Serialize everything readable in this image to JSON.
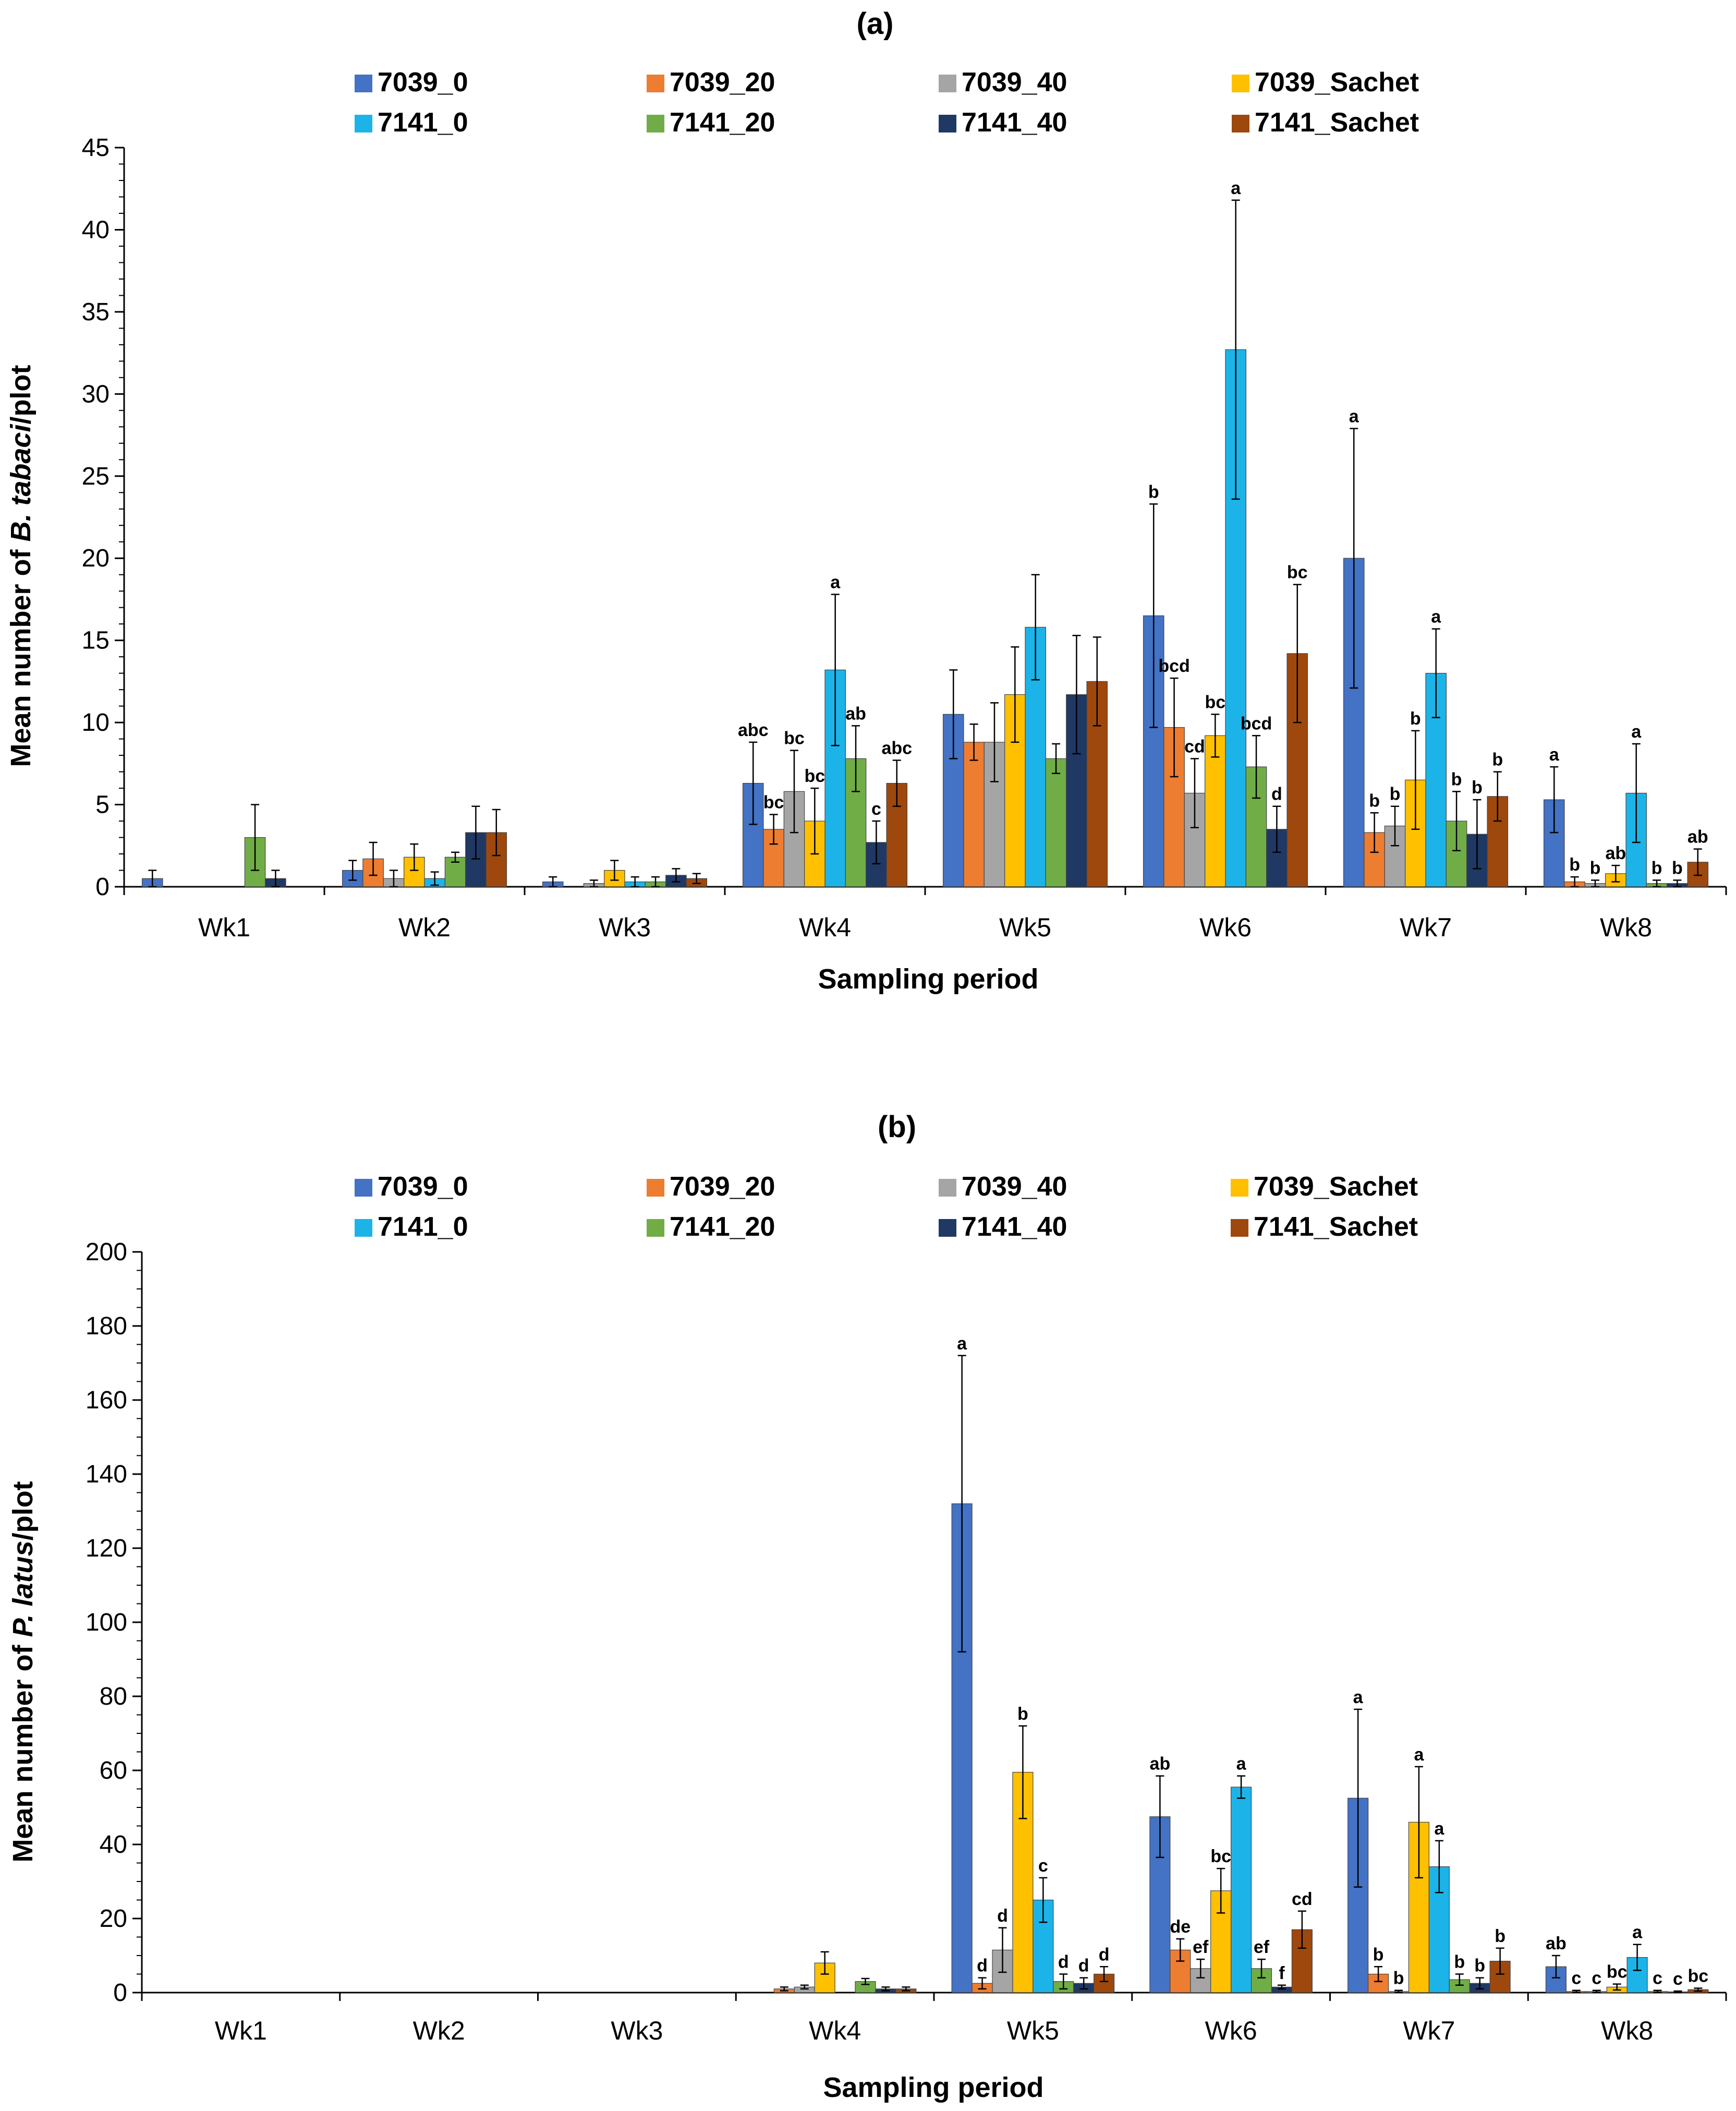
{
  "colors": {
    "7039_0": "#4472C4",
    "7039_20": "#ED7D31",
    "7039_40": "#A5A5A5",
    "7039_Sachet": "#FFC000",
    "7141_0": "#1CB4E8",
    "7141_20": "#70AD47",
    "7141_40": "#203864",
    "7141_Sachet": "#9E480E"
  },
  "chart_data": [
    {
      "type": "bar",
      "title": "(a)",
      "xlabel": "Sampling period",
      "ylabel_prefix": "Mean number of ",
      "ylabel_italic": "B. tabaci",
      "ylabel_suffix": "/plot",
      "ylim": [
        0,
        45
      ],
      "yticks": [
        0,
        5,
        10,
        15,
        20,
        25,
        30,
        35,
        40,
        45
      ],
      "categories": [
        "Wk1",
        "Wk2",
        "Wk3",
        "Wk4",
        "Wk5",
        "Wk6",
        "Wk7",
        "Wk8"
      ],
      "legend": [
        "7039_0",
        "7039_20",
        "7039_40",
        "7039_Sachet",
        "7141_0",
        "7141_20",
        "7141_40",
        "7141_Sachet"
      ],
      "series": [
        {
          "name": "7039_0",
          "values": [
            0.5,
            1.0,
            0.3,
            6.3,
            10.5,
            16.5,
            20.0,
            5.3
          ],
          "errors": [
            0.5,
            0.6,
            0.3,
            2.5,
            2.7,
            6.8,
            7.9,
            2.0
          ],
          "labels": [
            "",
            "",
            "",
            "abc",
            "",
            "b",
            "a",
            "a"
          ]
        },
        {
          "name": "7039_20",
          "values": [
            0.0,
            1.7,
            0.0,
            3.5,
            8.8,
            9.7,
            3.3,
            0.3
          ],
          "errors": [
            0.0,
            1.0,
            0.0,
            0.9,
            1.1,
            3.0,
            1.2,
            0.3
          ],
          "labels": [
            "",
            "",
            "",
            "bc",
            "",
            "bcd",
            "b",
            "b"
          ]
        },
        {
          "name": "7039_40",
          "values": [
            0.0,
            0.5,
            0.2,
            5.8,
            8.8,
            5.7,
            3.7,
            0.2
          ],
          "errors": [
            0.0,
            0.5,
            0.2,
            2.5,
            2.4,
            2.1,
            1.2,
            0.2
          ],
          "labels": [
            "",
            "",
            "",
            "bc",
            "",
            "cd",
            "b",
            "b"
          ]
        },
        {
          "name": "7039_Sachet",
          "values": [
            0.0,
            1.8,
            1.0,
            4.0,
            11.7,
            9.2,
            6.5,
            0.8
          ],
          "errors": [
            0.0,
            0.8,
            0.6,
            2.0,
            2.9,
            1.3,
            3.0,
            0.5
          ],
          "labels": [
            "",
            "",
            "",
            "bc",
            "",
            "bc",
            "b",
            "ab"
          ]
        },
        {
          "name": "7141_0",
          "values": [
            0.0,
            0.5,
            0.3,
            13.2,
            15.8,
            32.7,
            13.0,
            5.7
          ],
          "errors": [
            0.0,
            0.4,
            0.3,
            4.6,
            3.2,
            9.1,
            2.7,
            3.0
          ],
          "labels": [
            "",
            "",
            "",
            "a",
            "",
            "a",
            "a",
            "a"
          ]
        },
        {
          "name": "7141_20",
          "values": [
            3.0,
            1.8,
            0.3,
            7.8,
            7.8,
            7.3,
            4.0,
            0.2
          ],
          "errors": [
            2.0,
            0.3,
            0.3,
            2.0,
            0.9,
            1.9,
            1.8,
            0.2
          ],
          "labels": [
            "",
            "",
            "",
            "ab",
            "",
            "bcd",
            "b",
            "b"
          ]
        },
        {
          "name": "7141_40",
          "values": [
            0.5,
            3.3,
            0.7,
            2.7,
            11.7,
            3.5,
            3.2,
            0.2
          ],
          "errors": [
            0.5,
            1.6,
            0.4,
            1.3,
            3.6,
            1.4,
            2.1,
            0.2
          ],
          "labels": [
            "",
            "",
            "",
            "c",
            "",
            "d",
            "b",
            "b"
          ]
        },
        {
          "name": "7141_Sachet",
          "values": [
            0.0,
            3.3,
            0.5,
            6.3,
            12.5,
            14.2,
            5.5,
            1.5
          ],
          "errors": [
            0.0,
            1.4,
            0.3,
            1.4,
            2.7,
            4.2,
            1.5,
            0.8
          ],
          "labels": [
            "",
            "",
            "",
            "abc",
            "",
            "bc",
            "b",
            "ab"
          ]
        }
      ]
    },
    {
      "type": "bar",
      "title": "(b)",
      "xlabel": "Sampling period",
      "ylabel_prefix": "Mean number of ",
      "ylabel_italic": "P. latus",
      "ylabel_suffix": "/plot",
      "ylim": [
        0,
        200
      ],
      "yticks": [
        0,
        20,
        40,
        60,
        80,
        100,
        120,
        140,
        160,
        180,
        200
      ],
      "categories": [
        "Wk1",
        "Wk2",
        "Wk3",
        "Wk4",
        "Wk5",
        "Wk6",
        "Wk7",
        "Wk8"
      ],
      "legend": [
        "7039_0",
        "7039_20",
        "7039_40",
        "7039_Sachet",
        "7141_0",
        "7141_20",
        "7141_40",
        "7141_Sachet"
      ],
      "series": [
        {
          "name": "7039_0",
          "values": [
            0,
            0,
            0,
            0,
            132,
            47.5,
            52.5,
            7.0
          ],
          "errors": [
            0,
            0,
            0,
            0,
            40,
            11,
            24,
            3
          ],
          "labels": [
            "",
            "",
            "",
            "",
            "a",
            "ab",
            "a",
            "ab"
          ]
        },
        {
          "name": "7039_20",
          "values": [
            0,
            0,
            0,
            1.0,
            2.5,
            11.5,
            5.0,
            0.3
          ],
          "errors": [
            0,
            0,
            0,
            0.5,
            1.5,
            3,
            2,
            0.3
          ],
          "labels": [
            "",
            "",
            "",
            "",
            "d",
            "de",
            "b",
            "c"
          ]
        },
        {
          "name": "7039_40",
          "values": [
            0,
            0,
            0,
            1.5,
            11.5,
            6.5,
            0.3,
            0.3
          ],
          "errors": [
            0,
            0,
            0,
            0.5,
            6,
            2.5,
            0.3,
            0.3
          ],
          "labels": [
            "",
            "",
            "",
            "",
            "d",
            "ef",
            "b",
            "c"
          ]
        },
        {
          "name": "7039_Sachet",
          "values": [
            0,
            0,
            0,
            8.0,
            59.5,
            27.5,
            46.0,
            1.5
          ],
          "errors": [
            0,
            0,
            0,
            3,
            12.5,
            6,
            15,
            0.8
          ],
          "labels": [
            "",
            "",
            "",
            "",
            "b",
            "bc",
            "a",
            "bc"
          ]
        },
        {
          "name": "7141_0",
          "values": [
            0,
            0,
            0,
            0,
            25.0,
            55.5,
            34.0,
            9.5
          ],
          "errors": [
            0,
            0,
            0,
            0,
            6,
            3,
            7,
            3.5
          ],
          "labels": [
            "",
            "",
            "",
            "",
            "c",
            "a",
            "a",
            "a"
          ]
        },
        {
          "name": "7141_20",
          "values": [
            0,
            0,
            0,
            3.0,
            3.0,
            6.5,
            3.5,
            0.3
          ],
          "errors": [
            0,
            0,
            0,
            0.8,
            2,
            2.5,
            1.5,
            0.3
          ],
          "labels": [
            "",
            "",
            "",
            "",
            "d",
            "ef",
            "b",
            "c"
          ]
        },
        {
          "name": "7141_40",
          "values": [
            0,
            0,
            0,
            1.0,
            2.5,
            1.5,
            2.5,
            0.2
          ],
          "errors": [
            0,
            0,
            0,
            0.5,
            1.5,
            0.5,
            1.5,
            0.2
          ],
          "labels": [
            "",
            "",
            "",
            "",
            "d",
            "f",
            "b",
            "c"
          ]
        },
        {
          "name": "7141_Sachet",
          "values": [
            0,
            0,
            0,
            1.0,
            5.0,
            17.0,
            8.5,
            0.8
          ],
          "errors": [
            0,
            0,
            0,
            0.5,
            2,
            5,
            3.5,
            0.4
          ],
          "labels": [
            "",
            "",
            "",
            "",
            "d",
            "cd",
            "b",
            "bc"
          ]
        }
      ]
    }
  ]
}
